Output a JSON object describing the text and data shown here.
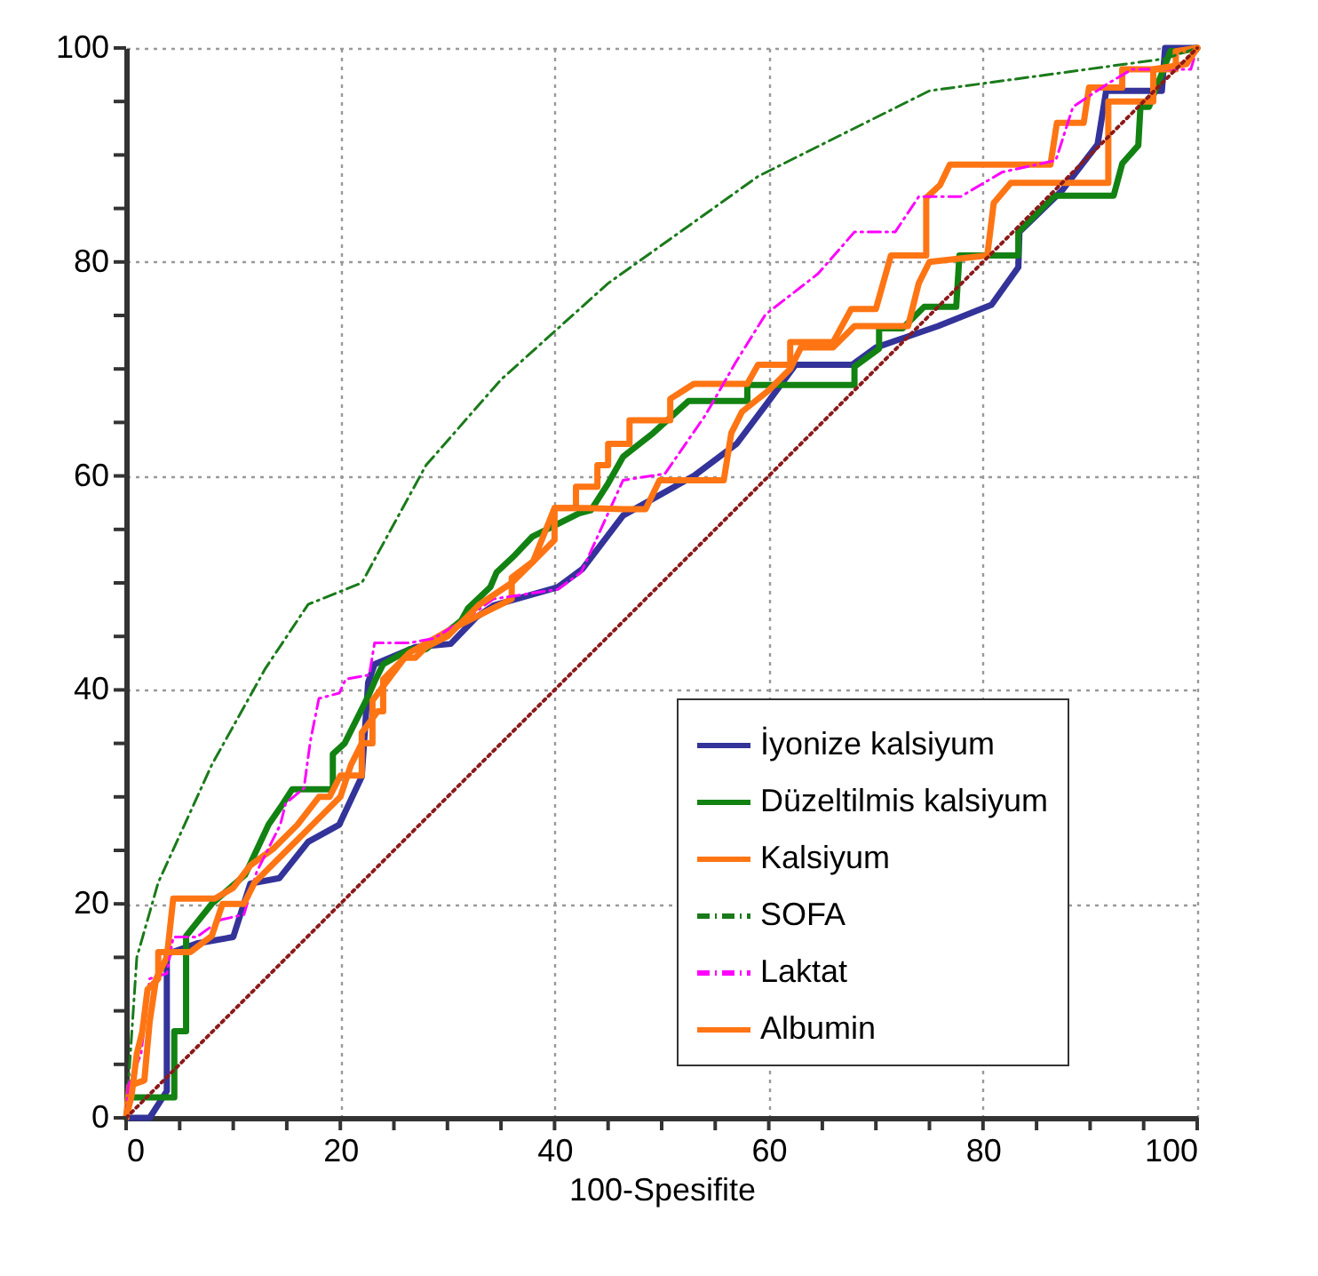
{
  "chart_data": {
    "type": "line",
    "xlabel": "100-Spesifite",
    "xlim": [
      0,
      100
    ],
    "ylim": [
      0,
      100
    ],
    "xticks": [
      0,
      {
        "value": 5,
        "label": null
      },
      {
        "value": 10,
        "label": null
      },
      {
        "value": 15,
        "label": null
      },
      20,
      {
        "value": 25,
        "label": null
      },
      {
        "value": 30,
        "label": null
      },
      {
        "value": 35,
        "label": null
      },
      40,
      {
        "value": 45,
        "label": null
      },
      {
        "value": 50,
        "label": null
      },
      {
        "value": 55,
        "label": null
      },
      60,
      {
        "value": 65,
        "label": null
      },
      {
        "value": 70,
        "label": null
      },
      {
        "value": 75,
        "label": null
      },
      80,
      {
        "value": 85,
        "label": null
      },
      {
        "value": 90,
        "label": null
      },
      {
        "value": 95,
        "label": null
      },
      100
    ],
    "yticks": [
      0,
      {
        "value": 5,
        "label": null
      },
      {
        "value": 10,
        "label": null
      },
      {
        "value": 15,
        "label": null
      },
      20,
      {
        "value": 25,
        "label": null
      },
      {
        "value": 30,
        "label": null
      },
      {
        "value": 35,
        "label": null
      },
      40,
      {
        "value": 45,
        "label": null
      },
      {
        "value": 50,
        "label": null
      },
      {
        "value": 55,
        "label": null
      },
      60,
      {
        "value": 65,
        "label": null
      },
      {
        "value": 70,
        "label": null
      },
      {
        "value": 75,
        "label": null
      },
      80,
      {
        "value": 85,
        "label": null
      },
      {
        "value": 90,
        "label": null
      },
      {
        "value": 95,
        "label": null
      },
      100
    ],
    "grid": true,
    "legend": "bottom right",
    "marker": "none",
    "series": [
      {
        "name": "İyonize kalsiyum",
        "color": "#33339a",
        "line_style": "solid",
        "x": [
          0,
          2.2,
          3.8,
          3.8,
          6.6,
          10,
          11.6,
          14.3,
          17,
          19.9,
          22,
          22.6,
          23.2,
          27,
          30.3,
          32.7,
          34.3,
          40.3,
          42.6,
          46.4,
          53,
          57,
          60,
          62.5,
          67.8,
          70,
          75.8,
          80.8,
          83.3,
          83.4,
          87.4,
          90.7,
          91.5,
          96.7,
          97,
          100
        ],
        "values": [
          0,
          0,
          2.5,
          15.3,
          16.3,
          16.9,
          21.9,
          22.4,
          25.8,
          27.4,
          31.9,
          40.7,
          42.4,
          44,
          44.3,
          46.8,
          47.9,
          49.6,
          51.3,
          56.3,
          60,
          63,
          67,
          70.4,
          70.4,
          72,
          74,
          76,
          79.5,
          82.8,
          86.7,
          91,
          96,
          96,
          100,
          100
        ]
      },
      {
        "name": "Düzeltilmis kalsiyum",
        "color": "#128212",
        "line_style": "solid",
        "x": [
          0,
          0.3,
          4.5,
          4.5,
          5.6,
          5.6,
          8,
          11.1,
          13.3,
          14.4,
          15.5,
          19.3,
          19.3,
          20.4,
          21.5,
          22.6,
          23.2,
          24,
          26.5,
          28,
          31.3,
          31.9,
          34,
          34.6,
          36.3,
          37.9,
          42.3,
          43.4,
          45,
          46.4,
          49.2,
          52.5,
          58,
          58,
          68,
          68,
          70.3,
          70.3,
          72.5,
          74.5,
          77.5,
          77.8,
          83.3,
          83.3,
          85,
          86.7,
          92.2,
          93,
          94.5,
          94.7,
          95.5,
          97.5,
          98.6,
          100
        ],
        "values": [
          0,
          1.9,
          1.9,
          8.1,
          8.1,
          17,
          20,
          22.7,
          27.4,
          29,
          30.7,
          30.7,
          34,
          35,
          37.2,
          39.4,
          40.8,
          42.4,
          43.8,
          43.8,
          46.5,
          47.6,
          49.6,
          51,
          52.6,
          54.3,
          56.5,
          56.8,
          59.3,
          61.8,
          64,
          67,
          67,
          68.5,
          68.5,
          70.2,
          71.9,
          73.8,
          73.8,
          75.8,
          75.8,
          80.6,
          80.6,
          82.8,
          84.5,
          86.2,
          86.2,
          89.2,
          90.9,
          94.5,
          94.5,
          99.7,
          99.7,
          100
        ]
      },
      {
        "name": "Kalsiyum",
        "color": "#ff7514",
        "line_style": "solid",
        "x": [
          0,
          0.3,
          1.7,
          2.2,
          2.8,
          3.8,
          4.4,
          8.3,
          10,
          11.6,
          13.8,
          16,
          18,
          19,
          20,
          22,
          22,
          23.5,
          24,
          24,
          26.5,
          30,
          33,
          36,
          36,
          38,
          40,
          42,
          42,
          44,
          44,
          45,
          45,
          47,
          47,
          50.8,
          50.8,
          53,
          58,
          59,
          62,
          62,
          66,
          67.7,
          70,
          71.4,
          74.7,
          74.7,
          76,
          76.9,
          86.3,
          86.9,
          89.4,
          89.9,
          93,
          93,
          98,
          98,
          100
        ],
        "values": [
          0,
          3,
          3.5,
          9,
          13,
          15,
          20.5,
          20.5,
          21.5,
          23.6,
          25.2,
          27.4,
          30,
          30,
          32,
          32,
          36,
          38,
          38,
          41,
          43.5,
          45.5,
          47,
          48.5,
          50.5,
          52,
          57,
          57,
          59,
          59,
          61,
          61,
          63,
          63,
          65.2,
          65.2,
          67.2,
          68.6,
          68.6,
          70.4,
          70.4,
          72.5,
          72.5,
          75.6,
          75.6,
          80.6,
          80.6,
          86,
          87.2,
          89.1,
          89.1,
          93,
          93,
          96.3,
          96.3,
          98,
          98,
          99.7,
          100
        ]
      },
      {
        "name": "SOFA",
        "color": "#1a7a1a",
        "line_style": "dashed",
        "x": [
          0,
          1,
          3,
          8,
          13,
          17,
          22,
          28,
          35,
          45,
          59,
          75,
          97,
          100
        ],
        "values": [
          0,
          15,
          22,
          33,
          42,
          48,
          50,
          61,
          69,
          78,
          88,
          96,
          99,
          100
        ]
      },
      {
        "name": "Laktat",
        "color": "#ff00ff",
        "line_style": "dashed",
        "x": [
          0,
          0.2,
          1.4,
          2.2,
          3.8,
          4.4,
          6.6,
          8.8,
          11,
          12.2,
          14.4,
          14.9,
          16.6,
          17.2,
          18,
          19.9,
          20.5,
          22.7,
          23.2,
          26.5,
          28.7,
          31.5,
          34.3,
          37,
          40.3,
          42.5,
          44,
          46.4,
          50.3,
          54.1,
          56.9,
          59.7,
          64.6,
          68,
          71.8,
          74,
          77.9,
          81.8,
          86.8,
          88.4,
          91.7,
          93.9,
          99.4,
          100
        ],
        "values": [
          0,
          3,
          6,
          13,
          13.5,
          16.9,
          16.9,
          18.5,
          19,
          23,
          27.4,
          29.4,
          30.8,
          35.2,
          39.2,
          39.7,
          41,
          41.4,
          44.4,
          44.4,
          44.8,
          46.5,
          48.5,
          48.9,
          49.4,
          51,
          54.3,
          59.6,
          60.2,
          65.7,
          70.6,
          75.1,
          78.9,
          82.8,
          82.8,
          86.1,
          86.1,
          88.4,
          89.5,
          94.5,
          96.7,
          98,
          98,
          100
        ]
      },
      {
        "name": "Albumin",
        "color": "#ff7514",
        "line_style": "solid",
        "x": [
          0,
          0.5,
          1,
          1.5,
          2,
          3,
          3,
          6,
          8,
          9,
          11,
          12,
          14,
          16,
          18,
          20,
          21,
          22,
          23,
          23,
          24.5,
          26,
          27,
          28,
          30,
          32,
          33,
          36,
          38,
          40,
          40,
          43,
          46.4,
          48.5,
          49.8,
          55.8,
          56.5,
          57.5,
          60,
          62,
          63,
          66,
          68,
          73,
          74,
          75,
          80.4,
          81,
          82.6,
          91.7,
          91.7,
          95.9,
          95.9,
          99,
          100
        ],
        "values": [
          0,
          2,
          6,
          8,
          12,
          13,
          15.5,
          15.5,
          17,
          20,
          20,
          22,
          24,
          26,
          28,
          30,
          33,
          35,
          35,
          39,
          41,
          43,
          43,
          44,
          45,
          47,
          48,
          50,
          52,
          54,
          57,
          57,
          56.9,
          56.9,
          59.6,
          59.6,
          64,
          66,
          68,
          70,
          72,
          72,
          74,
          74,
          78,
          80,
          80.6,
          85.5,
          87.4,
          87.4,
          95,
          95,
          98,
          98.5,
          100
        ]
      },
      {
        "color": "#8b1a1a",
        "line_style": "dotted",
        "x": [
          0,
          100
        ],
        "values": [
          0,
          100
        ]
      }
    ]
  }
}
